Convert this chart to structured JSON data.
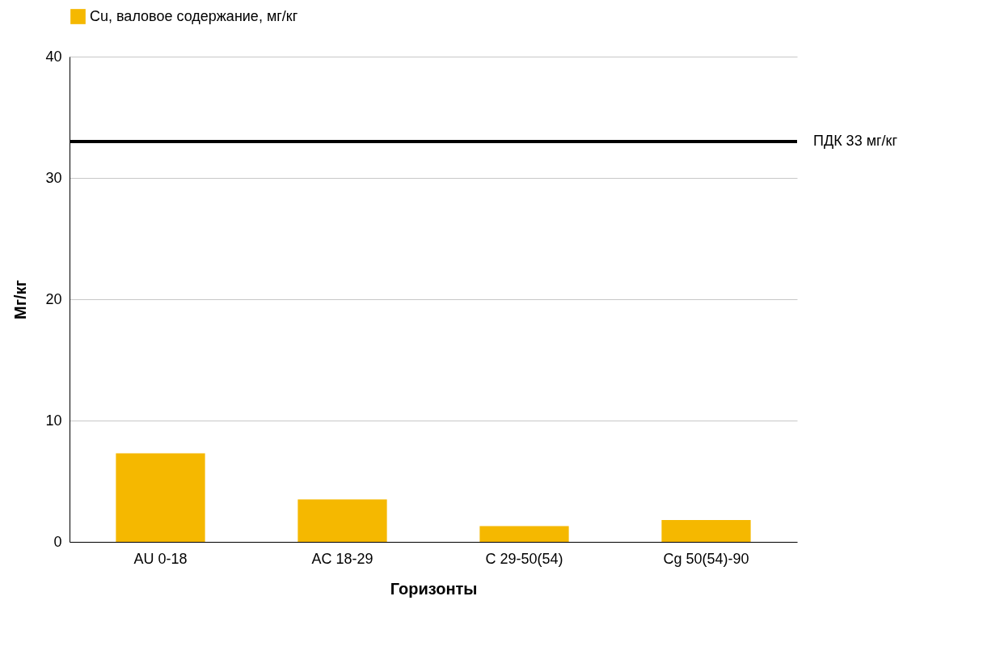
{
  "chart_data": {
    "type": "bar",
    "xlabel": "Горизонты",
    "ylabel": "Мг/кг",
    "categories": [
      "AU 0-18",
      "AC 18-29",
      "C 29-50(54)",
      "Cg 50(54)-90"
    ],
    "series": [
      {
        "name": "Cu, валовое содержание, мг/кг",
        "color": "#f5b800",
        "values": [
          7.3,
          3.5,
          1.3,
          1.8
        ]
      }
    ],
    "ylim": [
      0,
      40
    ],
    "yticks": [
      0,
      10,
      20,
      30,
      40
    ],
    "grid": "y",
    "legend": "top",
    "ref_lines": [
      {
        "axis": "y",
        "value": 33,
        "label": "ПДК 33 мг/кг",
        "color": "#000000"
      }
    ]
  }
}
